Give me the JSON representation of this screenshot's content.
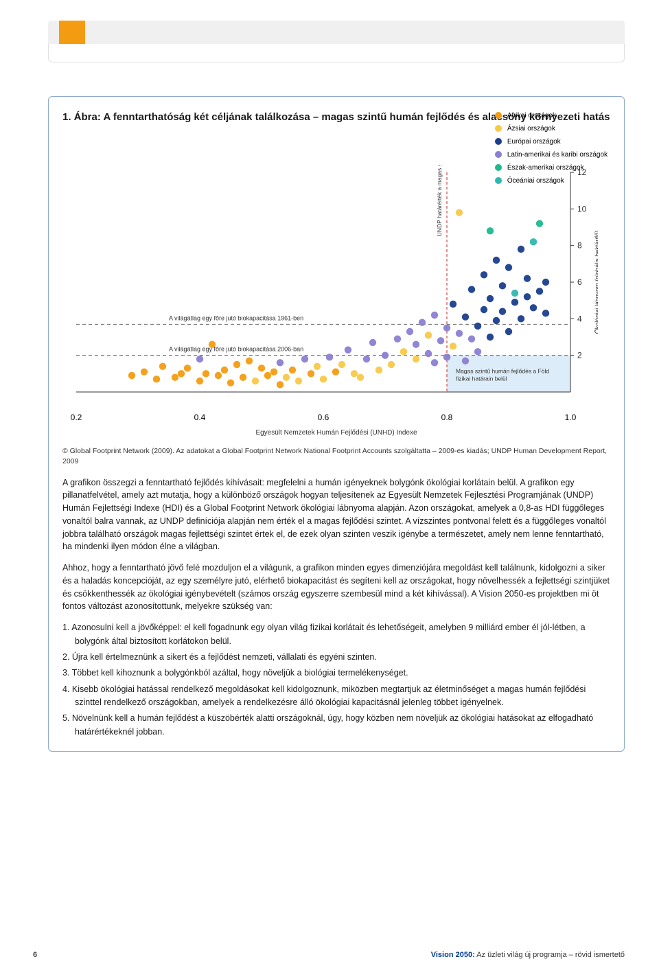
{
  "figure": {
    "title": "1. Ábra: A fenntarthatóság két céljának találkozása – magas szintű humán fejlődés és alacsony környezeti hatás",
    "legend": [
      {
        "label": "Afrikai országok",
        "color": "#f39c12"
      },
      {
        "label": "Ázsiai országok",
        "color": "#f7c948"
      },
      {
        "label": "Európai országok",
        "color": "#1a3e8c"
      },
      {
        "label": "Latin-amerikai és karibi országok",
        "color": "#8a7fd1"
      },
      {
        "label": "Észak-amerikai országok",
        "color": "#1fb890"
      },
      {
        "label": "Óceániai országok",
        "color": "#2fb8b1"
      }
    ],
    "xlabel": "Egyesült Nemzetek Humán Fejlődési (UNHD) Indexe",
    "ylabel": "Ökológiai lábnyom (globális hektár/fő)",
    "xlim": [
      0.2,
      1.0
    ],
    "x_ticks": [
      0.2,
      0.4,
      0.6,
      0.8,
      1.0
    ],
    "ylim": [
      0,
      12
    ],
    "y_ticks": [
      2,
      4,
      6,
      8,
      10,
      12
    ],
    "hline_1961": {
      "label": "A világátlag egy főre jutó biokapacitása 1961-ben",
      "y": 3.7
    },
    "hline_2006": {
      "label": "A világátlag egy főre jutó biokapacitása 2006-ban",
      "y": 2.0
    },
    "vline": {
      "label": "UNDP határérték a magas szintű humán fejlődéshez",
      "x": 0.8
    },
    "quadrant_label": "Magas szintű humán fejlődés a Föld fizikai határain belül",
    "quadrant_fill": "#cfe4f7",
    "marker_radius": 5.2,
    "plot_background": "#ffffff",
    "dash_color": "#666666",
    "vline_color": "#d24a43",
    "points": [
      {
        "x": 0.29,
        "y": 0.9,
        "c": "#f39c12"
      },
      {
        "x": 0.31,
        "y": 1.1,
        "c": "#f39c12"
      },
      {
        "x": 0.33,
        "y": 0.7,
        "c": "#f39c12"
      },
      {
        "x": 0.34,
        "y": 1.4,
        "c": "#f39c12"
      },
      {
        "x": 0.36,
        "y": 0.8,
        "c": "#f39c12"
      },
      {
        "x": 0.37,
        "y": 1.0,
        "c": "#f39c12"
      },
      {
        "x": 0.38,
        "y": 1.3,
        "c": "#f39c12"
      },
      {
        "x": 0.4,
        "y": 0.6,
        "c": "#f39c12"
      },
      {
        "x": 0.4,
        "y": 1.8,
        "c": "#8a7fd1"
      },
      {
        "x": 0.41,
        "y": 1.0,
        "c": "#f39c12"
      },
      {
        "x": 0.42,
        "y": 2.6,
        "c": "#f39c12"
      },
      {
        "x": 0.43,
        "y": 0.9,
        "c": "#f39c12"
      },
      {
        "x": 0.44,
        "y": 1.2,
        "c": "#f39c12"
      },
      {
        "x": 0.45,
        "y": 0.5,
        "c": "#f39c12"
      },
      {
        "x": 0.46,
        "y": 1.5,
        "c": "#f39c12"
      },
      {
        "x": 0.47,
        "y": 0.8,
        "c": "#f39c12"
      },
      {
        "x": 0.48,
        "y": 1.7,
        "c": "#f39c12"
      },
      {
        "x": 0.49,
        "y": 0.6,
        "c": "#f7c948"
      },
      {
        "x": 0.5,
        "y": 1.3,
        "c": "#f39c12"
      },
      {
        "x": 0.51,
        "y": 0.9,
        "c": "#f39c12"
      },
      {
        "x": 0.52,
        "y": 1.1,
        "c": "#f39c12"
      },
      {
        "x": 0.53,
        "y": 0.4,
        "c": "#f39c12"
      },
      {
        "x": 0.53,
        "y": 1.6,
        "c": "#8a7fd1"
      },
      {
        "x": 0.54,
        "y": 0.8,
        "c": "#f7c948"
      },
      {
        "x": 0.55,
        "y": 1.2,
        "c": "#f39c12"
      },
      {
        "x": 0.56,
        "y": 0.6,
        "c": "#f7c948"
      },
      {
        "x": 0.57,
        "y": 1.8,
        "c": "#8a7fd1"
      },
      {
        "x": 0.58,
        "y": 1.0,
        "c": "#f39c12"
      },
      {
        "x": 0.59,
        "y": 1.4,
        "c": "#f7c948"
      },
      {
        "x": 0.6,
        "y": 0.7,
        "c": "#f7c948"
      },
      {
        "x": 0.61,
        "y": 1.9,
        "c": "#8a7fd1"
      },
      {
        "x": 0.62,
        "y": 1.1,
        "c": "#f39c12"
      },
      {
        "x": 0.63,
        "y": 1.5,
        "c": "#f7c948"
      },
      {
        "x": 0.64,
        "y": 2.3,
        "c": "#8a7fd1"
      },
      {
        "x": 0.65,
        "y": 1.0,
        "c": "#f7c948"
      },
      {
        "x": 0.66,
        "y": 0.8,
        "c": "#f7c948"
      },
      {
        "x": 0.67,
        "y": 1.8,
        "c": "#8a7fd1"
      },
      {
        "x": 0.68,
        "y": 2.7,
        "c": "#8a7fd1"
      },
      {
        "x": 0.69,
        "y": 1.2,
        "c": "#f7c948"
      },
      {
        "x": 0.7,
        "y": 2.0,
        "c": "#8a7fd1"
      },
      {
        "x": 0.71,
        "y": 1.5,
        "c": "#f7c948"
      },
      {
        "x": 0.72,
        "y": 2.9,
        "c": "#8a7fd1"
      },
      {
        "x": 0.73,
        "y": 2.2,
        "c": "#f7c948"
      },
      {
        "x": 0.74,
        "y": 3.3,
        "c": "#8a7fd1"
      },
      {
        "x": 0.75,
        "y": 1.8,
        "c": "#f7c948"
      },
      {
        "x": 0.75,
        "y": 2.6,
        "c": "#8a7fd1"
      },
      {
        "x": 0.76,
        "y": 3.8,
        "c": "#8a7fd1"
      },
      {
        "x": 0.77,
        "y": 2.1,
        "c": "#8a7fd1"
      },
      {
        "x": 0.77,
        "y": 3.1,
        "c": "#f7c948"
      },
      {
        "x": 0.78,
        "y": 1.6,
        "c": "#8a7fd1"
      },
      {
        "x": 0.78,
        "y": 4.2,
        "c": "#8a7fd1"
      },
      {
        "x": 0.79,
        "y": 2.8,
        "c": "#8a7fd1"
      },
      {
        "x": 0.8,
        "y": 3.5,
        "c": "#8a7fd1"
      },
      {
        "x": 0.8,
        "y": 1.9,
        "c": "#8a7fd1"
      },
      {
        "x": 0.81,
        "y": 2.5,
        "c": "#f7c948"
      },
      {
        "x": 0.81,
        "y": 4.8,
        "c": "#1a3e8c"
      },
      {
        "x": 0.82,
        "y": 3.2,
        "c": "#8a7fd1"
      },
      {
        "x": 0.82,
        "y": 9.8,
        "c": "#f7c948"
      },
      {
        "x": 0.83,
        "y": 1.7,
        "c": "#8a7fd1"
      },
      {
        "x": 0.83,
        "y": 4.1,
        "c": "#1a3e8c"
      },
      {
        "x": 0.84,
        "y": 2.9,
        "c": "#8a7fd1"
      },
      {
        "x": 0.84,
        "y": 5.6,
        "c": "#1a3e8c"
      },
      {
        "x": 0.85,
        "y": 3.6,
        "c": "#1a3e8c"
      },
      {
        "x": 0.85,
        "y": 2.2,
        "c": "#8a7fd1"
      },
      {
        "x": 0.86,
        "y": 4.5,
        "c": "#1a3e8c"
      },
      {
        "x": 0.86,
        "y": 6.4,
        "c": "#1a3e8c"
      },
      {
        "x": 0.87,
        "y": 3.0,
        "c": "#1a3e8c"
      },
      {
        "x": 0.87,
        "y": 5.1,
        "c": "#1a3e8c"
      },
      {
        "x": 0.87,
        "y": 8.8,
        "c": "#1fb890"
      },
      {
        "x": 0.88,
        "y": 3.9,
        "c": "#1a3e8c"
      },
      {
        "x": 0.88,
        "y": 7.2,
        "c": "#1a3e8c"
      },
      {
        "x": 0.89,
        "y": 4.4,
        "c": "#1a3e8c"
      },
      {
        "x": 0.89,
        "y": 5.8,
        "c": "#1a3e8c"
      },
      {
        "x": 0.9,
        "y": 3.3,
        "c": "#1a3e8c"
      },
      {
        "x": 0.9,
        "y": 6.8,
        "c": "#1a3e8c"
      },
      {
        "x": 0.91,
        "y": 4.9,
        "c": "#1a3e8c"
      },
      {
        "x": 0.91,
        "y": 5.4,
        "c": "#2fb8b1"
      },
      {
        "x": 0.92,
        "y": 4.0,
        "c": "#1a3e8c"
      },
      {
        "x": 0.92,
        "y": 7.8,
        "c": "#1a3e8c"
      },
      {
        "x": 0.93,
        "y": 5.2,
        "c": "#1a3e8c"
      },
      {
        "x": 0.93,
        "y": 6.2,
        "c": "#1a3e8c"
      },
      {
        "x": 0.94,
        "y": 4.6,
        "c": "#1a3e8c"
      },
      {
        "x": 0.94,
        "y": 8.2,
        "c": "#2fb8b1"
      },
      {
        "x": 0.95,
        "y": 9.2,
        "c": "#1fb890"
      },
      {
        "x": 0.95,
        "y": 5.5,
        "c": "#1a3e8c"
      },
      {
        "x": 0.96,
        "y": 6.0,
        "c": "#1a3e8c"
      },
      {
        "x": 0.96,
        "y": 4.3,
        "c": "#1a3e8c"
      }
    ]
  },
  "source": "© Global Footprint Network (2009). Az adatokat a Global Footprint Network National Footprint Accounts szolgáltatta – 2009-es kiadás; UNDP Human Development Report, 2009",
  "para1": "A grafikon összegzi a fenntartható fejlődés kihívásait: megfelelni a humán igényeknek bolygónk ökológiai korlátain belül. A grafikon egy pillanatfelvétel, amely azt mutatja, hogy a különböző országok hogyan teljesítenek az Egyesült Nemzetek Fejlesztési Programjának (UNDP) Humán Fejlettségi Indexe (HDI) és a Global Footprint Network ökológiai lábnyoma alapján. Azon országokat, amelyek a 0,8-as HDI függőleges vonaltól balra vannak, az UNDP definíciója alapján nem érték el a magas fejlődési szintet. A vízszintes pontvonal felett és a függőleges vonaltól jobbra található országok magas fejlettségi szintet értek el, de ezek olyan szinten veszik igénybe a természetet, amely nem lenne fenntartható, ha mindenki ilyen módon élne a világban.",
  "para2": "Ahhoz, hogy a fenntartható jövő felé mozduljon el a világunk, a grafikon minden egyes dimenziójára megoldást kell találnunk, kidolgozni a siker és a haladás koncepcióját, az egy személyre jutó, elérhető biokapacitást és segíteni kell az országokat, hogy növelhessék a fejlettségi szintjüket és csökkenthessék az ökológiai igénybevételt (számos ország egyszerre szembesül mind a két kihívással). A Vision 2050-es projektben mi öt fontos változást azonosítottunk, melyekre szükség van:",
  "list": [
    "1. Azonosulni kell a jövőképpel: el kell fogadnunk egy olyan világ fizikai korlátait és lehetőségeit, amelyben 9 milliárd ember él jól-létben, a bolygónk által biztosított korlátokon belül.",
    "2. Újra kell értelmeznünk a sikert és a fejlődést nemzeti, vállalati és egyéni szinten.",
    "3. Többet kell kihoznunk a bolygónkból azáltal, hogy növeljük a biológiai termelékenységet.",
    "4. Kisebb ökológiai hatással rendelkező megoldásokat kell kidolgoznunk, miközben megtartjuk az életminőséget a magas humán fejlődési szinttel rendelkező országokban, amelyek a rendelkezésre álló ökológiai kapacitásnál jelenleg többet igényelnek.",
    "5. Növelnünk kell a humán fejlődést a küszöbérték alatti országoknál, úgy, hogy közben nem növeljük az ökológiai hatásokat az elfogadható határértékeknél jobban."
  ],
  "footer": {
    "page": "6",
    "title_bold": "Vision 2050:",
    "title_rest": " Az üzleti világ új programja – rövid ismertető"
  }
}
